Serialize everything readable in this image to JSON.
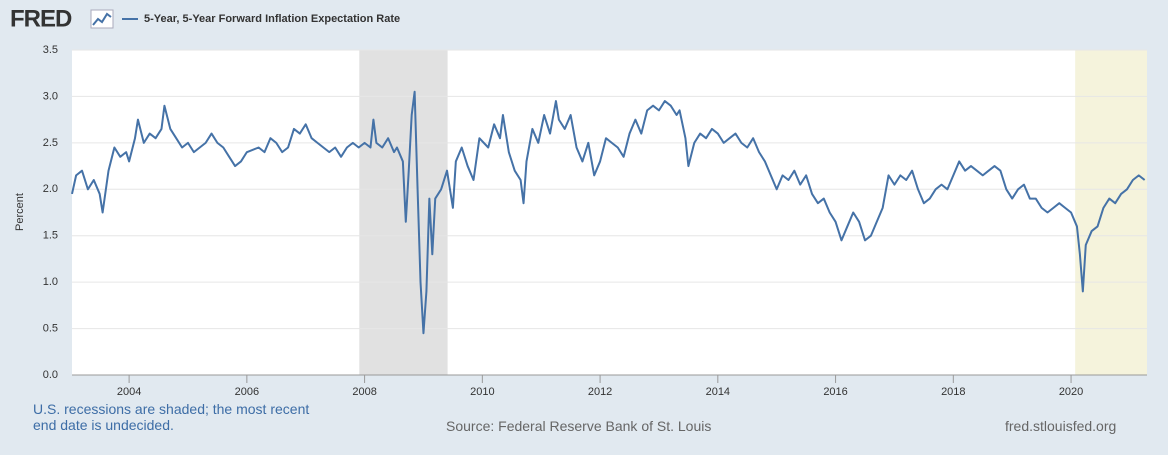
{
  "logo": "FRED",
  "chart_data": {
    "type": "line",
    "y_label": "Percent",
    "grid": true,
    "xlim": [
      2003.03,
      2021.29
    ],
    "xticks": [
      2004,
      2006,
      2008,
      2010,
      2012,
      2014,
      2016,
      2018,
      2020
    ],
    "ylim": [
      0,
      3.5
    ],
    "yticks": [
      {
        "value": 0,
        "label": "0.0"
      },
      0.5,
      {
        "value": 1,
        "label": "1.0"
      },
      1.5,
      {
        "value": 2,
        "label": "2.0"
      },
      2.5,
      {
        "value": 3,
        "label": "3.0"
      },
      3.5
    ],
    "recessions": [
      {
        "start": 2007.91,
        "end": 2009.41,
        "color": "#e1e1e1"
      },
      {
        "start": 2020.07,
        "end": 2021.29,
        "color": "#f5f3dc"
      }
    ],
    "x": [
      2003.03,
      2003.1,
      2003.2,
      2003.3,
      2003.4,
      2003.5,
      2003.55,
      2003.65,
      2003.75,
      2003.85,
      2003.95,
      2004.0,
      2004.1,
      2004.15,
      2004.25,
      2004.35,
      2004.45,
      2004.55,
      2004.6,
      2004.7,
      2004.8,
      2004.9,
      2005.0,
      2005.1,
      2005.2,
      2005.3,
      2005.4,
      2005.5,
      2005.6,
      2005.7,
      2005.8,
      2005.9,
      2006.0,
      2006.2,
      2006.3,
      2006.4,
      2006.5,
      2006.6,
      2006.7,
      2006.8,
      2006.9,
      2007.0,
      2007.1,
      2007.2,
      2007.3,
      2007.4,
      2007.5,
      2007.6,
      2007.7,
      2007.8,
      2007.9,
      2008.0,
      2008.1,
      2008.15,
      2008.2,
      2008.3,
      2008.4,
      2008.5,
      2008.55,
      2008.65,
      2008.7,
      2008.75,
      2008.8,
      2008.85,
      2008.9,
      2008.95,
      2009.0,
      2009.05,
      2009.1,
      2009.15,
      2009.2,
      2009.3,
      2009.4,
      2009.5,
      2009.55,
      2009.65,
      2009.75,
      2009.85,
      2009.95,
      2010.1,
      2010.2,
      2010.3,
      2010.35,
      2010.45,
      2010.55,
      2010.65,
      2010.7,
      2010.75,
      2010.85,
      2010.95,
      2011.05,
      2011.15,
      2011.25,
      2011.3,
      2011.4,
      2011.5,
      2011.6,
      2011.7,
      2011.8,
      2011.9,
      2012.0,
      2012.1,
      2012.2,
      2012.3,
      2012.4,
      2012.5,
      2012.6,
      2012.7,
      2012.8,
      2012.9,
      2013.0,
      2013.1,
      2013.2,
      2013.3,
      2013.35,
      2013.45,
      2013.5,
      2013.6,
      2013.7,
      2013.8,
      2013.9,
      2014.0,
      2014.1,
      2014.2,
      2014.3,
      2014.4,
      2014.5,
      2014.6,
      2014.7,
      2014.8,
      2014.9,
      2015.0,
      2015.1,
      2015.2,
      2015.3,
      2015.4,
      2015.5,
      2015.6,
      2015.7,
      2015.8,
      2015.9,
      2016.0,
      2016.1,
      2016.2,
      2016.3,
      2016.4,
      2016.5,
      2016.6,
      2016.7,
      2016.8,
      2016.9,
      2017.0,
      2017.1,
      2017.2,
      2017.3,
      2017.4,
      2017.5,
      2017.6,
      2017.7,
      2017.8,
      2017.9,
      2018.0,
      2018.1,
      2018.2,
      2018.3,
      2018.4,
      2018.5,
      2018.6,
      2018.7,
      2018.8,
      2018.9,
      2019.0,
      2019.1,
      2019.2,
      2019.3,
      2019.4,
      2019.5,
      2019.6,
      2019.7,
      2019.8,
      2019.9,
      2020.0,
      2020.1,
      2020.15,
      2020.2,
      2020.25,
      2020.35,
      2020.45,
      2020.55,
      2020.65,
      2020.75,
      2020.85,
      2020.95,
      2021.05,
      2021.15,
      2021.25
    ],
    "series": [
      {
        "name": "5-Year, 5-Year Forward Inflation Expectation Rate",
        "color": "#4572a7",
        "values": [
          1.95,
          2.15,
          2.2,
          2.0,
          2.1,
          1.95,
          1.75,
          2.2,
          2.45,
          2.35,
          2.4,
          2.3,
          2.55,
          2.75,
          2.5,
          2.6,
          2.55,
          2.65,
          2.9,
          2.65,
          2.55,
          2.45,
          2.5,
          2.4,
          2.45,
          2.5,
          2.6,
          2.5,
          2.45,
          2.35,
          2.25,
          2.3,
          2.4,
          2.45,
          2.4,
          2.55,
          2.5,
          2.4,
          2.45,
          2.65,
          2.6,
          2.7,
          2.55,
          2.5,
          2.45,
          2.4,
          2.45,
          2.35,
          2.45,
          2.5,
          2.45,
          2.5,
          2.45,
          2.75,
          2.5,
          2.45,
          2.55,
          2.4,
          2.45,
          2.3,
          1.65,
          2.2,
          2.8,
          3.05,
          2.0,
          1.0,
          0.45,
          0.9,
          1.9,
          1.3,
          1.9,
          2.0,
          2.2,
          1.8,
          2.3,
          2.45,
          2.25,
          2.1,
          2.55,
          2.45,
          2.7,
          2.55,
          2.8,
          2.4,
          2.2,
          2.1,
          1.85,
          2.3,
          2.65,
          2.5,
          2.8,
          2.6,
          2.95,
          2.75,
          2.65,
          2.8,
          2.45,
          2.3,
          2.5,
          2.15,
          2.3,
          2.55,
          2.5,
          2.45,
          2.35,
          2.6,
          2.75,
          2.6,
          2.85,
          2.9,
          2.85,
          2.95,
          2.9,
          2.8,
          2.85,
          2.55,
          2.25,
          2.5,
          2.6,
          2.55,
          2.65,
          2.6,
          2.5,
          2.55,
          2.6,
          2.5,
          2.45,
          2.55,
          2.4,
          2.3,
          2.15,
          2.0,
          2.15,
          2.1,
          2.2,
          2.05,
          2.15,
          1.95,
          1.85,
          1.9,
          1.75,
          1.65,
          1.45,
          1.6,
          1.75,
          1.65,
          1.45,
          1.5,
          1.65,
          1.8,
          2.15,
          2.05,
          2.15,
          2.1,
          2.2,
          2.0,
          1.85,
          1.9,
          2.0,
          2.05,
          2.0,
          2.15,
          2.3,
          2.2,
          2.25,
          2.2,
          2.15,
          2.2,
          2.25,
          2.2,
          2.0,
          1.9,
          2.0,
          2.05,
          1.9,
          1.9,
          1.8,
          1.75,
          1.8,
          1.85,
          1.8,
          1.75,
          1.6,
          1.3,
          0.9,
          1.4,
          1.55,
          1.6,
          1.8,
          1.9,
          1.85,
          1.95,
          2.0,
          2.1,
          2.15,
          2.1
        ]
      }
    ],
    "footnote": "U.S. recessions are shaded; the most recent end date is undecided.",
    "source": "Source: Federal Reserve Bank of St. Louis",
    "site": "fred.stlouisfed.org"
  }
}
